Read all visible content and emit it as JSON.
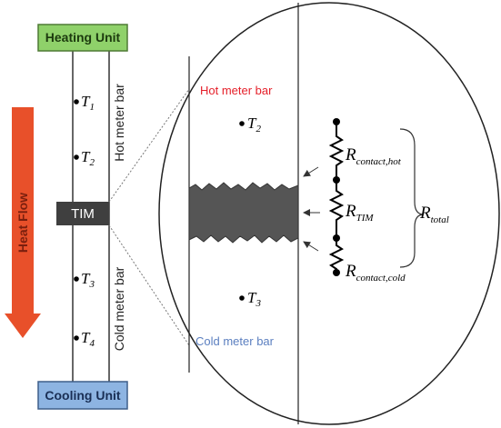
{
  "bar": {
    "heating_unit": "Heating Unit",
    "cooling_unit": "Cooling Unit",
    "tim": "TIM",
    "heat_flow": "Heat Flow",
    "hot_label": "Hot meter bar",
    "cold_label": "Cold meter bar",
    "sensors": [
      {
        "symbol": "T",
        "subscript": "1"
      },
      {
        "symbol": "T",
        "subscript": "2"
      },
      {
        "symbol": "T",
        "subscript": "3"
      },
      {
        "symbol": "T",
        "subscript": "4"
      }
    ]
  },
  "zoom": {
    "hot_label": "Hot meter bar",
    "cold_label": "Cold meter bar",
    "sensors": [
      {
        "symbol": "T",
        "subscript": "2"
      },
      {
        "symbol": "T",
        "subscript": "3"
      }
    ],
    "resistances": [
      {
        "symbol": "R",
        "subscript": "contact,hot"
      },
      {
        "symbol": "R",
        "subscript": "TIM"
      },
      {
        "symbol": "R",
        "subscript": "contact,cold"
      }
    ],
    "total": {
      "symbol": "R",
      "subscript": "total"
    }
  }
}
